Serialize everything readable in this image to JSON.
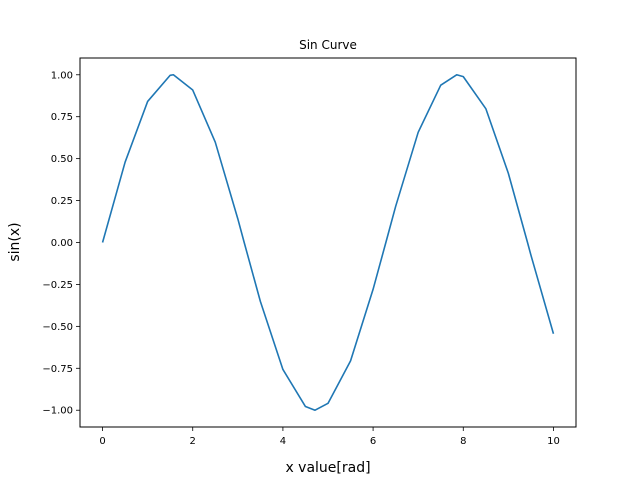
{
  "chart_data": {
    "type": "line",
    "title": "Sin Curve",
    "xlabel": "x value[rad]",
    "ylabel": "sin(x)",
    "xlim": [
      -0.5,
      10.5
    ],
    "ylim": [
      -1.1,
      1.1
    ],
    "x_ticks": [
      0,
      2,
      4,
      6,
      8,
      10
    ],
    "x_tick_labels": [
      "0",
      "2",
      "4",
      "6",
      "8",
      "10"
    ],
    "y_ticks": [
      -1.0,
      -0.75,
      -0.5,
      -0.25,
      0.0,
      0.25,
      0.5,
      0.75,
      1.0
    ],
    "y_tick_labels": [
      "−1.00",
      "−0.75",
      "−0.50",
      "−0.25",
      "0.00",
      "0.25",
      "0.50",
      "0.75",
      "1.00"
    ],
    "grid": false,
    "series": [
      {
        "color": "#1f77b4",
        "x": [
          0,
          0.5,
          1.0,
          1.5,
          1.5708,
          2.0,
          2.5,
          3.0,
          3.1416,
          3.5,
          4.0,
          4.5,
          4.7124,
          5.0,
          5.5,
          6.0,
          6.2832,
          6.5,
          7.0,
          7.5,
          7.854,
          8.0,
          8.5,
          9.0,
          9.4248,
          9.5,
          10.0
        ],
        "y": [
          0.0,
          0.479,
          0.841,
          0.997,
          1.0,
          0.909,
          0.598,
          0.141,
          0.0,
          -0.351,
          -0.757,
          -0.978,
          -1.0,
          -0.959,
          -0.706,
          -0.279,
          0.0,
          0.215,
          0.657,
          0.938,
          1.0,
          0.989,
          0.798,
          0.412,
          0.0,
          -0.075,
          -0.544
        ]
      }
    ]
  }
}
